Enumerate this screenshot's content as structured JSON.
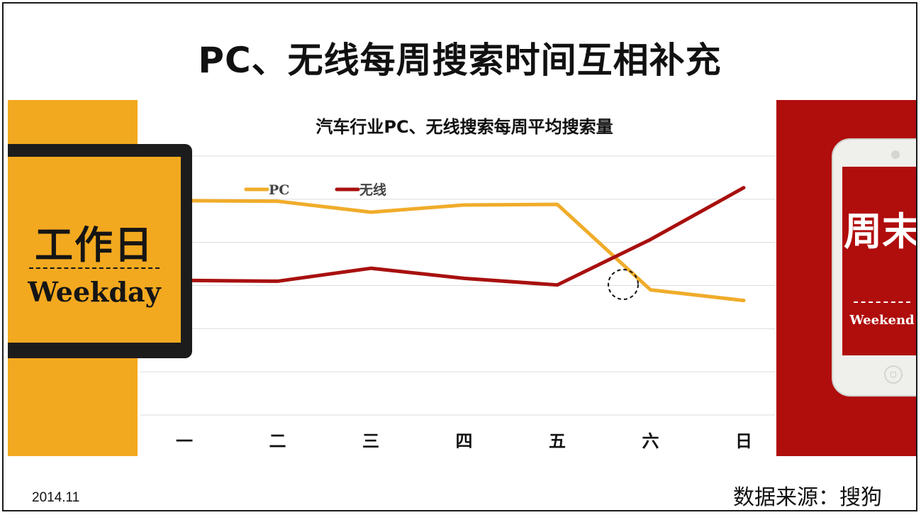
{
  "page": {
    "title": "PC、无线每周搜索时间互相补充",
    "date": "2014.11",
    "source": "数据来源：搜狗"
  },
  "weekday_panel": {
    "label_cn": "工作日",
    "label_en": "Weekday",
    "color": "#f3a91f"
  },
  "weekend_panel": {
    "label_cn": "周末",
    "label_en": "Weekend",
    "color": "#b00d0d"
  },
  "chart_data": {
    "type": "line",
    "title": "汽车行业PC、无线搜索每周平均搜索量",
    "categories": [
      "一",
      "二",
      "三",
      "四",
      "五",
      "六",
      "日"
    ],
    "series": [
      {
        "name": "PC",
        "color": "#f0ac2a",
        "values": [
          0.445,
          0.443,
          0.405,
          0.43,
          0.432,
          0.135,
          0.098
        ]
      },
      {
        "name": "无线",
        "color": "#a8100f",
        "values": [
          0.168,
          0.165,
          0.21,
          0.175,
          0.152,
          0.31,
          0.49
        ]
      }
    ],
    "ylim": [
      -0.3,
      0.6
    ],
    "grid": true,
    "legend": "top-left",
    "annotation": "crossover-circle"
  }
}
